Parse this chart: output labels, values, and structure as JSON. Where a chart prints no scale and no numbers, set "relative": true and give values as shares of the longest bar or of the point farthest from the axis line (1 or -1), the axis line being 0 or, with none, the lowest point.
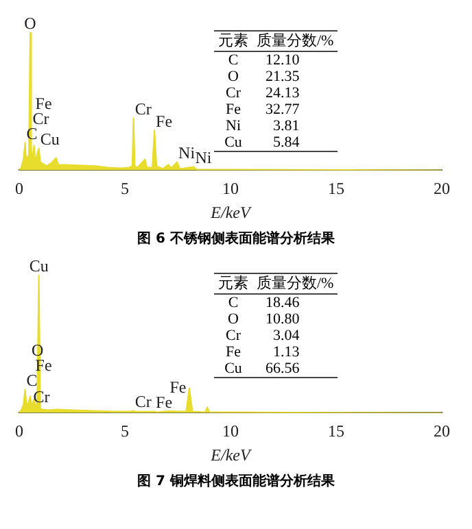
{
  "chart_data": [
    {
      "type": "area",
      "title": "图 6   不锈钢侧表面能谱分析结果",
      "xlabel": "E/keV",
      "relative": true,
      "color": "#e8dc2c",
      "marker": "none",
      "xlim": [
        0,
        20
      ],
      "xticks": [
        0,
        5,
        10,
        15,
        20
      ],
      "x": [
        0,
        0.1,
        0.2,
        0.28,
        0.33,
        0.4,
        0.45,
        0.52,
        0.57,
        0.62,
        0.7,
        0.76,
        0.85,
        0.93,
        1.0,
        1.1,
        1.3,
        1.5,
        1.74,
        1.85,
        2.2,
        3,
        3.7,
        4.2,
        4.8,
        5.2,
        5.35,
        5.41,
        5.47,
        5.6,
        5.95,
        6.05,
        6.3,
        6.4,
        6.5,
        6.8,
        7.06,
        7.2,
        7.47,
        7.6,
        8.26,
        8.4,
        10,
        13,
        20
      ],
      "values": [
        0,
        0.02,
        0.08,
        0.2,
        0.06,
        0.1,
        0.05,
        1.0,
        0.15,
        0.08,
        0.18,
        0.06,
        0.12,
        0.16,
        0.06,
        0.05,
        0.03,
        0.05,
        0.09,
        0.04,
        0.04,
        0.035,
        0.03,
        0.02,
        0.015,
        0.02,
        0.03,
        0.38,
        0.03,
        0.02,
        0.08,
        0.02,
        0.02,
        0.29,
        0.03,
        0.01,
        0.04,
        0.015,
        0.06,
        0.01,
        0.025,
        0.005,
        0.005,
        0.003,
        0
      ],
      "annotations": [
        {
          "text": "C",
          "x": 0.28,
          "y": 0.2
        },
        {
          "text": "Cu",
          "x": 0.93,
          "y": 0.16
        },
        {
          "text": "Cr",
          "x": 0.57,
          "y": 0.15
        },
        {
          "text": "Fe",
          "x": 0.7,
          "y": 0.18
        },
        {
          "text": "O",
          "x": 0.52,
          "y": 1.0
        },
        {
          "text": "Cr",
          "x": 5.41,
          "y": 0.38
        },
        {
          "text": "Fe",
          "x": 6.4,
          "y": 0.29
        },
        {
          "text": "Ni",
          "x": 7.47,
          "y": 0.06
        },
        {
          "text": "Ni",
          "x": 8.26,
          "y": 0.025
        },
        "元素 质量分数/%",
        "C 12.10",
        "O 21.35",
        "Cr 24.13",
        "Fe 32.77",
        "Ni 3.81",
        "Cu 5.84"
      ]
    },
    {
      "type": "area",
      "title": "图 7   铜焊料侧表面能谱分析结果",
      "xlabel": "E/keV",
      "relative": true,
      "color": "#e8dc2c",
      "marker": "none",
      "xlim": [
        0,
        20
      ],
      "xticks": [
        0,
        5,
        10,
        15,
        20
      ],
      "x": [
        0,
        0.1,
        0.2,
        0.28,
        0.35,
        0.45,
        0.52,
        0.6,
        0.7,
        0.78,
        0.85,
        0.93,
        1.0,
        1.1,
        1.4,
        1.8,
        2.5,
        3.5,
        4.5,
        5.3,
        5.41,
        5.5,
        6.3,
        6.4,
        6.5,
        7.06,
        7.9,
        8.05,
        8.2,
        8.8,
        8.9,
        9.0,
        10,
        13,
        20
      ],
      "values": [
        0,
        0.02,
        0.06,
        0.17,
        0.05,
        0.08,
        0.12,
        0.05,
        0.1,
        0.04,
        0.08,
        1.0,
        0.03,
        0.025,
        0.02,
        0.025,
        0.02,
        0.015,
        0.01,
        0.01,
        0.015,
        0.008,
        0.008,
        0.01,
        0.005,
        0.012,
        0.01,
        0.18,
        0.01,
        0.005,
        0.04,
        0.005,
        0.004,
        0.002,
        0
      ],
      "annotations": [
        {
          "text": "Cu",
          "x": 0.93,
          "y": 1.0
        },
        {
          "text": "Cr",
          "x": 0.6,
          "y": 0.05
        },
        {
          "text": "C",
          "x": 0.28,
          "y": 0.17
        },
        {
          "text": "Fe",
          "x": 0.7,
          "y": 0.1
        },
        {
          "text": "O",
          "x": 0.52,
          "y": 0.12
        },
        {
          "text": "Cr",
          "x": 5.41,
          "y": 0.015
        },
        {
          "text": "Fe",
          "x": 6.4,
          "y": 0.01
        },
        {
          "text": "Fe",
          "x": 7.06,
          "y": 0.012
        },
        "元素 质量分数/%",
        "C 18.46",
        "O 10.80",
        "Cr 3.04",
        "Fe 1.13",
        "Cu 66.56"
      ]
    }
  ]
}
